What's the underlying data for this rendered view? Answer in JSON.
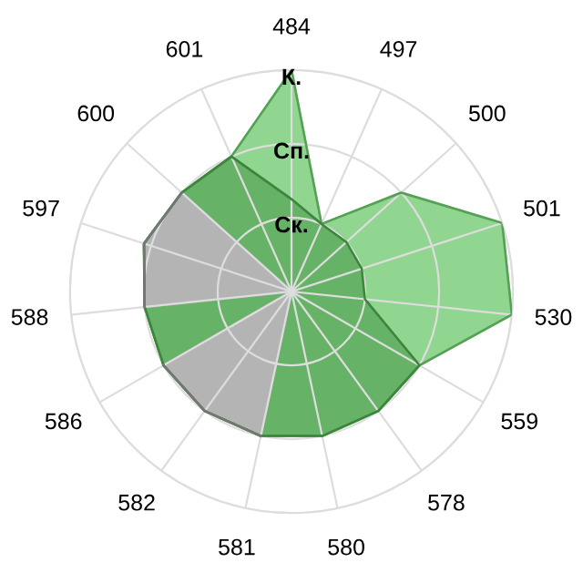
{
  "chart_data": {
    "type": "radar",
    "categories": [
      "484",
      "497",
      "500",
      "501",
      "530",
      "559",
      "578",
      "580",
      "581",
      "582",
      "586",
      "588",
      "597",
      "600",
      "601"
    ],
    "ylim": [
      0,
      3
    ],
    "yticks": [
      {
        "value": 1,
        "label": "Ск."
      },
      {
        "value": 2,
        "label": "Сп."
      },
      {
        "value": 3,
        "label": "К."
      }
    ],
    "grid": true,
    "series": [
      {
        "color": "#90d590",
        "values": [
          3,
          1,
          2,
          3,
          3,
          2,
          2,
          2,
          2,
          2,
          2,
          2,
          2.1,
          2,
          2
        ]
      },
      {
        "color": "#66b266",
        "values": [
          1.25,
          1,
          1,
          1,
          1,
          2,
          2,
          2,
          2,
          2,
          2,
          2,
          2.1,
          2,
          2
        ]
      },
      {
        "color": "#b4b4b4",
        "values": [
          null,
          null,
          null,
          null,
          null,
          null,
          null,
          null,
          2,
          2,
          2,
          null,
          null,
          null,
          null
        ]
      },
      {
        "color": "#b4b4b4",
        "values": [
          null,
          null,
          null,
          null,
          null,
          null,
          null,
          null,
          null,
          null,
          null,
          2,
          2.1,
          2,
          null
        ]
      }
    ]
  }
}
